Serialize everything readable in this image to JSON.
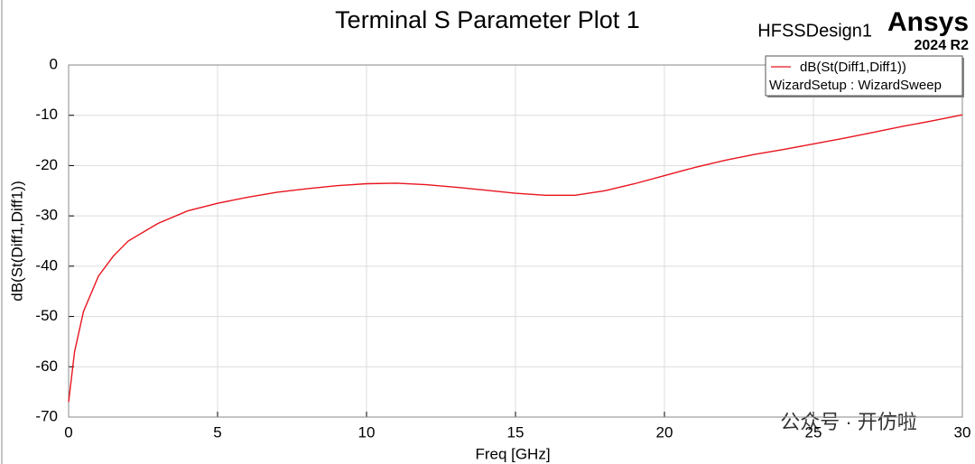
{
  "chart_data": {
    "type": "line",
    "title": "Terminal S Parameter Plot 1",
    "design": "HFSSDesign1",
    "brand": "Ansys",
    "version": "2024 R2",
    "xlabel": "Freq [GHz]",
    "ylabel": "dB(St(Diff1,Diff1))",
    "watermark": "公众号 · 开仿啦",
    "x": [
      0,
      0.1,
      0.2,
      0.5,
      1,
      1.5,
      2,
      3,
      4,
      5,
      6,
      7,
      8,
      9,
      10,
      11,
      12,
      13,
      14,
      15,
      16,
      17,
      18,
      19,
      20,
      21,
      22,
      23,
      24,
      25,
      26,
      27,
      28,
      29,
      30
    ],
    "series": [
      {
        "name": "dB(St(Diff1,Diff1))",
        "setup": "WizardSetup : WizardSweep",
        "color": "#e8141e",
        "values": [
          -67,
          -62,
          -57,
          -49,
          -42,
          -38,
          -35,
          -31.5,
          -29,
          -27.5,
          -26.3,
          -25.3,
          -24.6,
          -24,
          -23.6,
          -23.5,
          -23.8,
          -24.3,
          -24.9,
          -25.5,
          -25.9,
          -25.9,
          -25,
          -23.6,
          -22,
          -20.4,
          -19,
          -17.8,
          -16.8,
          -15.7,
          -14.6,
          -13.4,
          -12.2,
          -11.1,
          -9.9
        ]
      }
    ],
    "xlim": [
      0,
      30
    ],
    "xticks": [
      0,
      5,
      10,
      15,
      20,
      25,
      30
    ],
    "ylim": [
      -70,
      0
    ],
    "yticks": [
      -70,
      -60,
      -50,
      -40,
      -30,
      -20,
      -10,
      0
    ],
    "grid": true,
    "legend": "upper right"
  }
}
